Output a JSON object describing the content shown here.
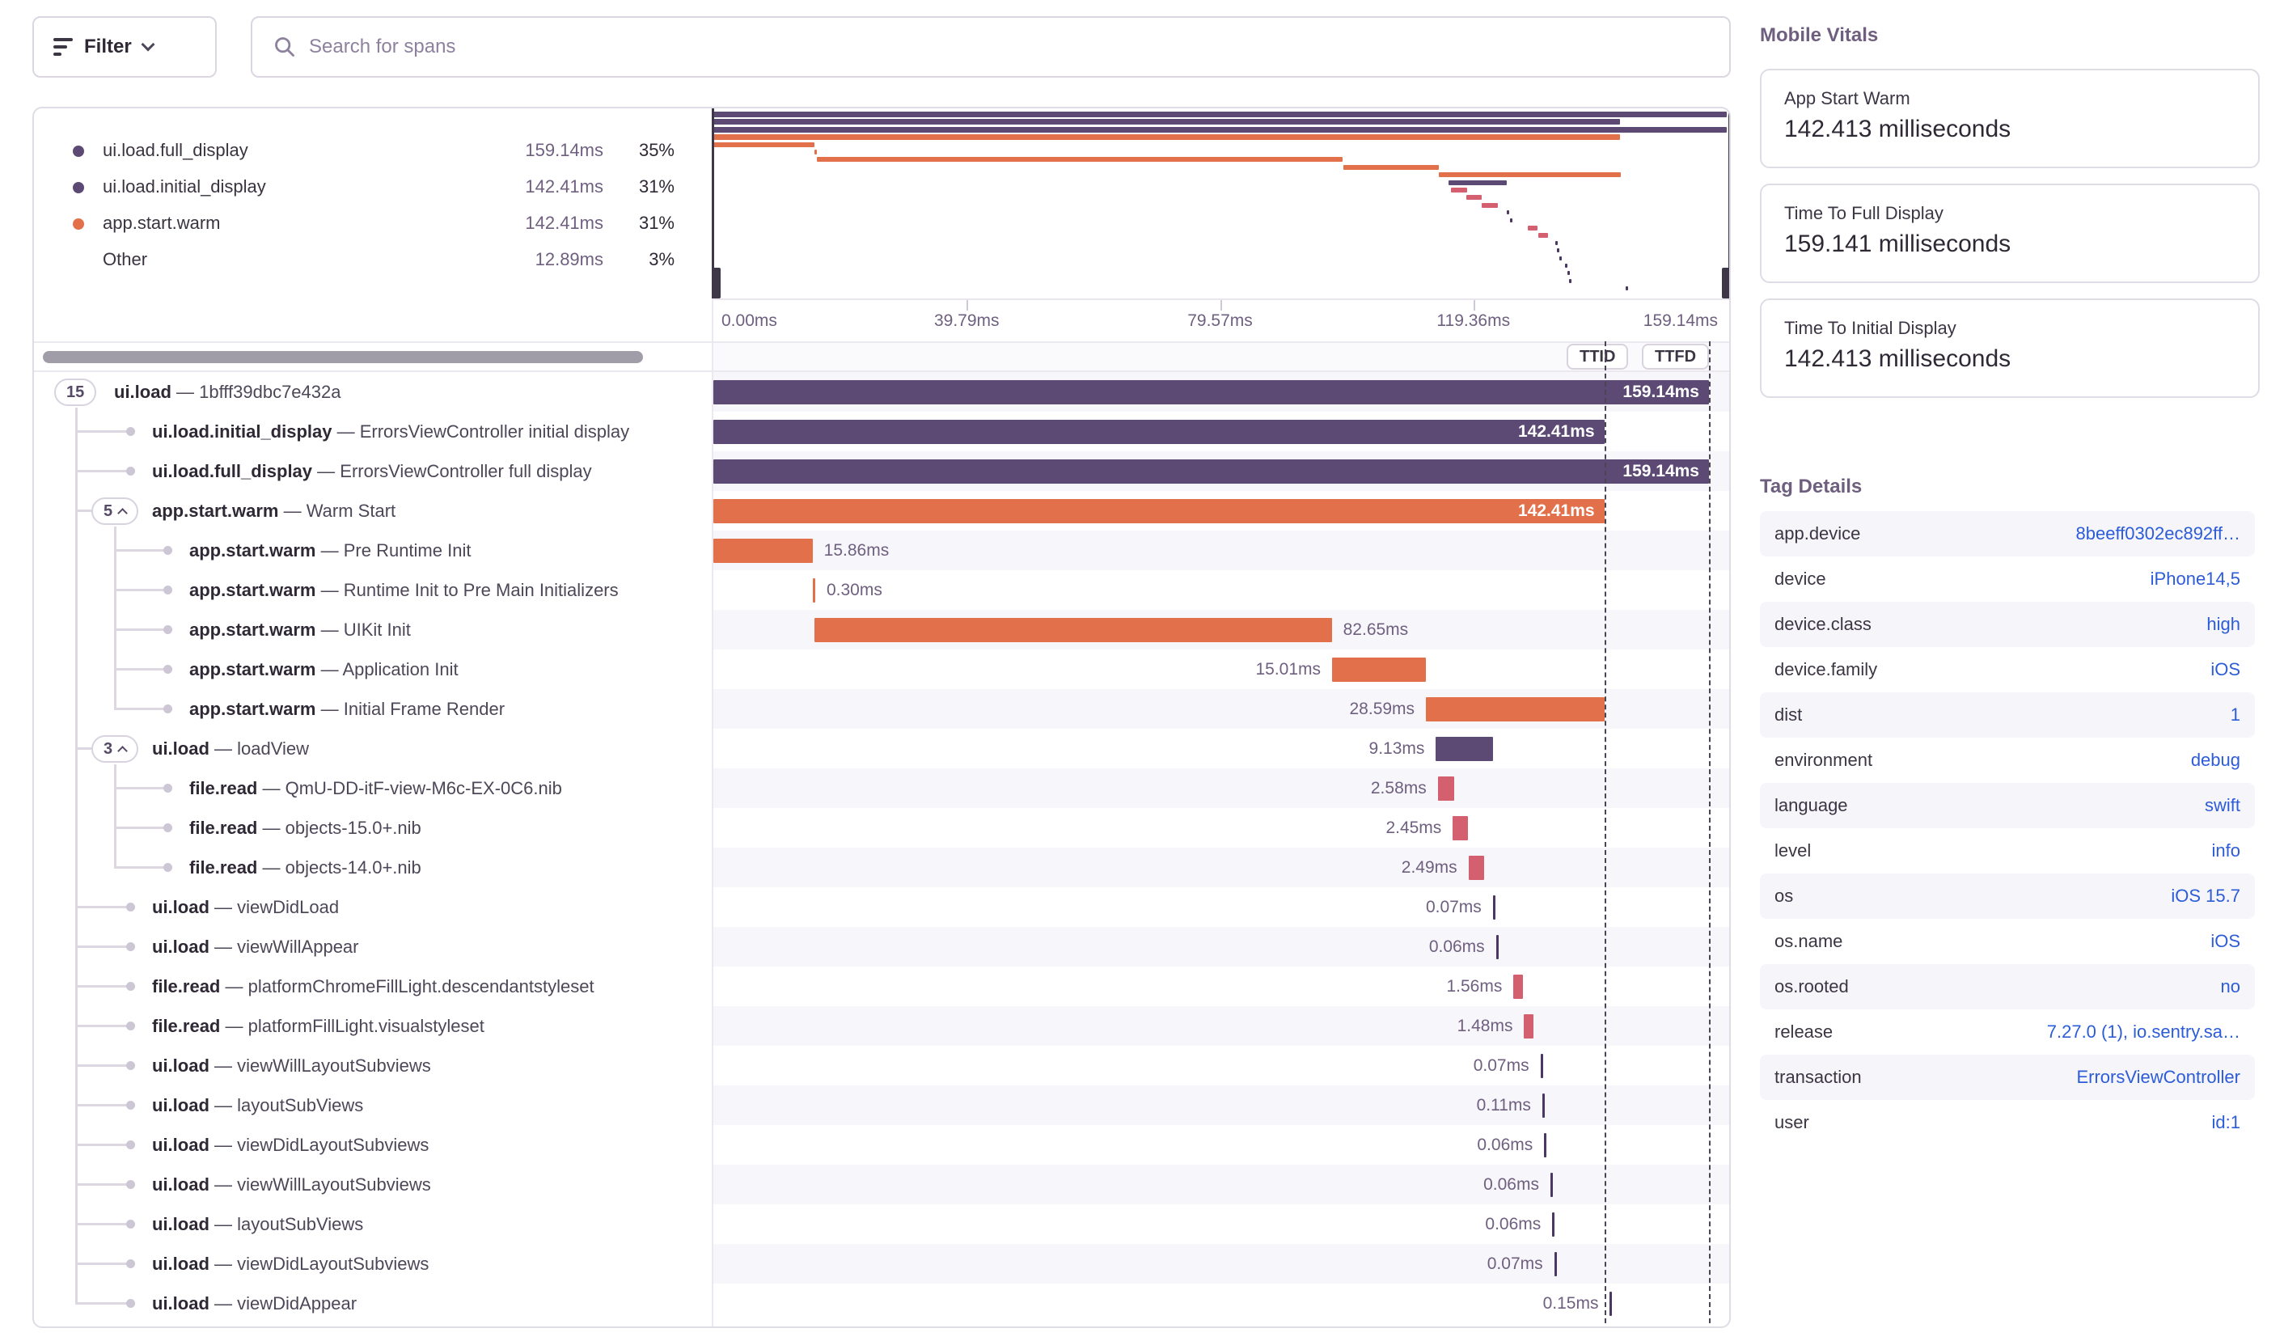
{
  "topbar": {
    "filter_label": "Filter",
    "search_placeholder": "Search for spans"
  },
  "colors": {
    "purple": "#5d4a74",
    "orange": "#e2714b",
    "red": "#d4606f",
    "tick": "#4a3764",
    "link_blue": "#2c5cd8",
    "handle_dark": "#3d3748",
    "stripe": "#f7f6fa"
  },
  "legend": {
    "items": [
      {
        "name": "ui.load.full_display",
        "duration": "159.14ms",
        "percent": "35%",
        "color": "#5d4a74"
      },
      {
        "name": "ui.load.initial_display",
        "duration": "142.41ms",
        "percent": "31%",
        "color": "#5d4a74"
      },
      {
        "name": "app.start.warm",
        "duration": "142.41ms",
        "percent": "31%",
        "color": "#e2714b"
      },
      {
        "name": "Other",
        "duration": "12.89ms",
        "percent": "3%",
        "color": ""
      }
    ]
  },
  "axis": {
    "ticks": [
      "0.00ms",
      "39.79ms",
      "79.57ms",
      "119.36ms",
      "159.14ms"
    ]
  },
  "controls": {
    "ttid": "TTID",
    "ttfd": "TTFD"
  },
  "timeline": {
    "total_ms": 159.14,
    "ttid_ms": 142.41,
    "ttfd_ms": 159.14,
    "separator": "—"
  },
  "spans": [
    {
      "op": "ui.load",
      "desc": "1bfff39dbc7e432a",
      "dur": "159.14ms",
      "start": 0,
      "ms": 159.14,
      "color": "purple",
      "level": 0,
      "pill": "15",
      "caret": false,
      "label": "inside",
      "kind": "bar"
    },
    {
      "op": "ui.load.initial_display",
      "desc": "ErrorsViewController initial display",
      "dur": "142.41ms",
      "start": 0,
      "ms": 142.41,
      "color": "purple",
      "level": 1,
      "pill": "",
      "caret": false,
      "label": "inside",
      "kind": "bar"
    },
    {
      "op": "ui.load.full_display",
      "desc": "ErrorsViewController full display",
      "dur": "159.14ms",
      "start": 0,
      "ms": 159.14,
      "color": "purple",
      "level": 1,
      "pill": "",
      "caret": false,
      "label": "inside",
      "kind": "bar"
    },
    {
      "op": "app.start.warm",
      "desc": "Warm Start",
      "dur": "142.41ms",
      "start": 0,
      "ms": 142.41,
      "color": "orange",
      "level": 1,
      "pill": "5",
      "caret": true,
      "label": "inside",
      "kind": "bar"
    },
    {
      "op": "app.start.warm",
      "desc": "Pre Runtime Init",
      "dur": "15.86ms",
      "start": 0,
      "ms": 15.86,
      "color": "orange",
      "level": 2,
      "pill": "",
      "caret": false,
      "label": "right",
      "kind": "bar"
    },
    {
      "op": "app.start.warm",
      "desc": "Runtime Init to Pre Main Initializers",
      "dur": "0.30ms",
      "start": 15.9,
      "ms": 0.3,
      "color": "orange",
      "level": 2,
      "pill": "",
      "caret": false,
      "label": "right",
      "kind": "bar"
    },
    {
      "op": "app.start.warm",
      "desc": "UIKit Init",
      "dur": "82.65ms",
      "start": 16.2,
      "ms": 82.65,
      "color": "orange",
      "level": 2,
      "pill": "",
      "caret": false,
      "label": "right",
      "kind": "bar"
    },
    {
      "op": "app.start.warm",
      "desc": "Application Init",
      "dur": "15.01ms",
      "start": 98.9,
      "ms": 15.01,
      "color": "orange",
      "level": 2,
      "pill": "",
      "caret": false,
      "label": "left",
      "kind": "bar"
    },
    {
      "op": "app.start.warm",
      "desc": "Initial Frame Render",
      "dur": "28.59ms",
      "start": 113.9,
      "ms": 28.59,
      "color": "orange",
      "level": 2,
      "pill": "",
      "caret": false,
      "label": "left",
      "kind": "bar"
    },
    {
      "op": "ui.load",
      "desc": "loadView",
      "dur": "9.13ms",
      "start": 115.5,
      "ms": 9.13,
      "color": "purple",
      "level": 1,
      "pill": "3",
      "caret": true,
      "label": "left",
      "kind": "bar"
    },
    {
      "op": "file.read",
      "desc": "QmU-DD-itF-view-M6c-EX-0C6.nib",
      "dur": "2.58ms",
      "start": 115.8,
      "ms": 2.58,
      "color": "red",
      "level": 2,
      "pill": "",
      "caret": false,
      "label": "left",
      "kind": "bar"
    },
    {
      "op": "file.read",
      "desc": "objects-15.0+.nib",
      "dur": "2.45ms",
      "start": 118.2,
      "ms": 2.45,
      "color": "red",
      "level": 2,
      "pill": "",
      "caret": false,
      "label": "left",
      "kind": "bar"
    },
    {
      "op": "file.read",
      "desc": "objects-14.0+.nib",
      "dur": "2.49ms",
      "start": 120.7,
      "ms": 2.49,
      "color": "red",
      "level": 2,
      "pill": "",
      "caret": false,
      "label": "left",
      "kind": "bar"
    },
    {
      "op": "ui.load",
      "desc": "viewDidLoad",
      "dur": "0.07ms",
      "start": 124.6,
      "ms": 0.07,
      "color": "tick",
      "level": 1,
      "pill": "",
      "caret": false,
      "label": "left",
      "kind": "tick"
    },
    {
      "op": "ui.load",
      "desc": "viewWillAppear",
      "dur": "0.06ms",
      "start": 125.1,
      "ms": 0.06,
      "color": "tick",
      "level": 1,
      "pill": "",
      "caret": false,
      "label": "left",
      "kind": "tick"
    },
    {
      "op": "file.read",
      "desc": "platformChromeFillLight.descendantstyleset",
      "dur": "1.56ms",
      "start": 127.9,
      "ms": 1.56,
      "color": "red",
      "level": 1,
      "pill": "",
      "caret": false,
      "label": "left",
      "kind": "bar"
    },
    {
      "op": "file.read",
      "desc": "platformFillLight.visualstyleset",
      "dur": "1.48ms",
      "start": 129.6,
      "ms": 1.48,
      "color": "red",
      "level": 1,
      "pill": "",
      "caret": false,
      "label": "left",
      "kind": "bar"
    },
    {
      "op": "ui.load",
      "desc": "viewWillLayoutSubviews",
      "dur": "0.07ms",
      "start": 132.2,
      "ms": 0.07,
      "color": "tick",
      "level": 1,
      "pill": "",
      "caret": false,
      "label": "left",
      "kind": "tick"
    },
    {
      "op": "ui.load",
      "desc": "layoutSubViews",
      "dur": "0.11ms",
      "start": 132.5,
      "ms": 0.11,
      "color": "tick",
      "level": 1,
      "pill": "",
      "caret": false,
      "label": "left",
      "kind": "tick"
    },
    {
      "op": "ui.load",
      "desc": "viewDidLayoutSubviews",
      "dur": "0.06ms",
      "start": 132.8,
      "ms": 0.06,
      "color": "tick",
      "level": 1,
      "pill": "",
      "caret": false,
      "label": "left",
      "kind": "tick"
    },
    {
      "op": "ui.load",
      "desc": "viewWillLayoutSubviews",
      "dur": "0.06ms",
      "start": 133.8,
      "ms": 0.06,
      "color": "tick",
      "level": 1,
      "pill": "",
      "caret": false,
      "label": "left",
      "kind": "tick"
    },
    {
      "op": "ui.load",
      "desc": "layoutSubViews",
      "dur": "0.06ms",
      "start": 134.1,
      "ms": 0.06,
      "color": "tick",
      "level": 1,
      "pill": "",
      "caret": false,
      "label": "left",
      "kind": "tick"
    },
    {
      "op": "ui.load",
      "desc": "viewDidLayoutSubviews",
      "dur": "0.07ms",
      "start": 134.4,
      "ms": 0.07,
      "color": "tick",
      "level": 1,
      "pill": "",
      "caret": false,
      "label": "left",
      "kind": "tick"
    },
    {
      "op": "ui.load",
      "desc": "viewDidAppear",
      "dur": "0.15ms",
      "start": 143.3,
      "ms": 0.15,
      "color": "tick",
      "level": 1,
      "pill": "",
      "caret": false,
      "label": "left",
      "kind": "tick"
    }
  ],
  "vitals": {
    "heading": "Mobile Vitals",
    "cards": [
      {
        "title": "App Start Warm",
        "value": "142.413 milliseconds"
      },
      {
        "title": "Time To Full Display",
        "value": "159.141 milliseconds"
      },
      {
        "title": "Time To Initial Display",
        "value": "142.413 milliseconds"
      }
    ]
  },
  "tags": {
    "heading": "Tag Details",
    "rows": [
      {
        "key": "app.device",
        "value": "8beeff0302ec892ff…"
      },
      {
        "key": "device",
        "value": "iPhone14,5"
      },
      {
        "key": "device.class",
        "value": "high"
      },
      {
        "key": "device.family",
        "value": "iOS"
      },
      {
        "key": "dist",
        "value": "1"
      },
      {
        "key": "environment",
        "value": "debug"
      },
      {
        "key": "language",
        "value": "swift"
      },
      {
        "key": "level",
        "value": "info"
      },
      {
        "key": "os",
        "value": "iOS 15.7"
      },
      {
        "key": "os.name",
        "value": "iOS"
      },
      {
        "key": "os.rooted",
        "value": "no"
      },
      {
        "key": "release",
        "value": "7.27.0 (1), io.sentry.sa…"
      },
      {
        "key": "transaction",
        "value": "ErrorsViewController"
      },
      {
        "key": "user",
        "value": "id:1"
      }
    ]
  }
}
